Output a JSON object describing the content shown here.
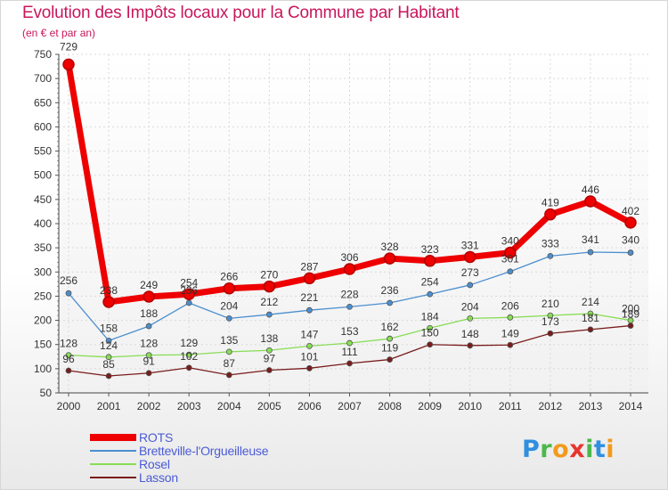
{
  "header": {
    "title": "Evolution des Impôts locaux pour la Commune par Habitant",
    "subtitle": "(en € et par an)"
  },
  "logo": {
    "letters": [
      "P",
      "r",
      "o",
      "x",
      "i",
      "t",
      "i"
    ],
    "colors": [
      "#2f8fe0",
      "#4bb84b",
      "#f29a1e",
      "#e8352e",
      "#4bb84b",
      "#2f8fe0",
      "#f29a1e"
    ]
  },
  "chart_data": {
    "type": "line",
    "title": "Evolution des Impôts locaux pour la Commune par Habitant",
    "ylabel": "(en € et par an)",
    "xlabel": "",
    "categories": [
      "2000",
      "2001",
      "2002",
      "2003",
      "2004",
      "2005",
      "2006",
      "2007",
      "2008",
      "2009",
      "2010",
      "2011",
      "2012",
      "2013",
      "2014"
    ],
    "yticks": [
      50,
      100,
      150,
      200,
      250,
      300,
      350,
      400,
      450,
      500,
      550,
      600,
      650,
      700,
      750
    ],
    "ylim": [
      50,
      750
    ],
    "grid": true,
    "legend_position": "bottom-left",
    "series": [
      {
        "name": "ROTS",
        "color": "#ee0000",
        "values": [
          729,
          238,
          249,
          254,
          266,
          270,
          287,
          306,
          328,
          323,
          331,
          340,
          419,
          446,
          402
        ]
      },
      {
        "name": "Bretteville-l'Orgueilleuse",
        "color": "#4b8fcf",
        "values": [
          256,
          158,
          188,
          236,
          204,
          212,
          221,
          228,
          236,
          254,
          273,
          301,
          333,
          341,
          340
        ]
      },
      {
        "name": "Rosel",
        "color": "#88dd55",
        "values": [
          128,
          124,
          128,
          129,
          135,
          138,
          147,
          153,
          162,
          184,
          204,
          206,
          210,
          214,
          200
        ]
      },
      {
        "name": "Lasson",
        "color": "#7a1c1c",
        "values": [
          96,
          85,
          91,
          102,
          87,
          97,
          101,
          111,
          119,
          150,
          148,
          149,
          173,
          181,
          189
        ]
      }
    ]
  }
}
